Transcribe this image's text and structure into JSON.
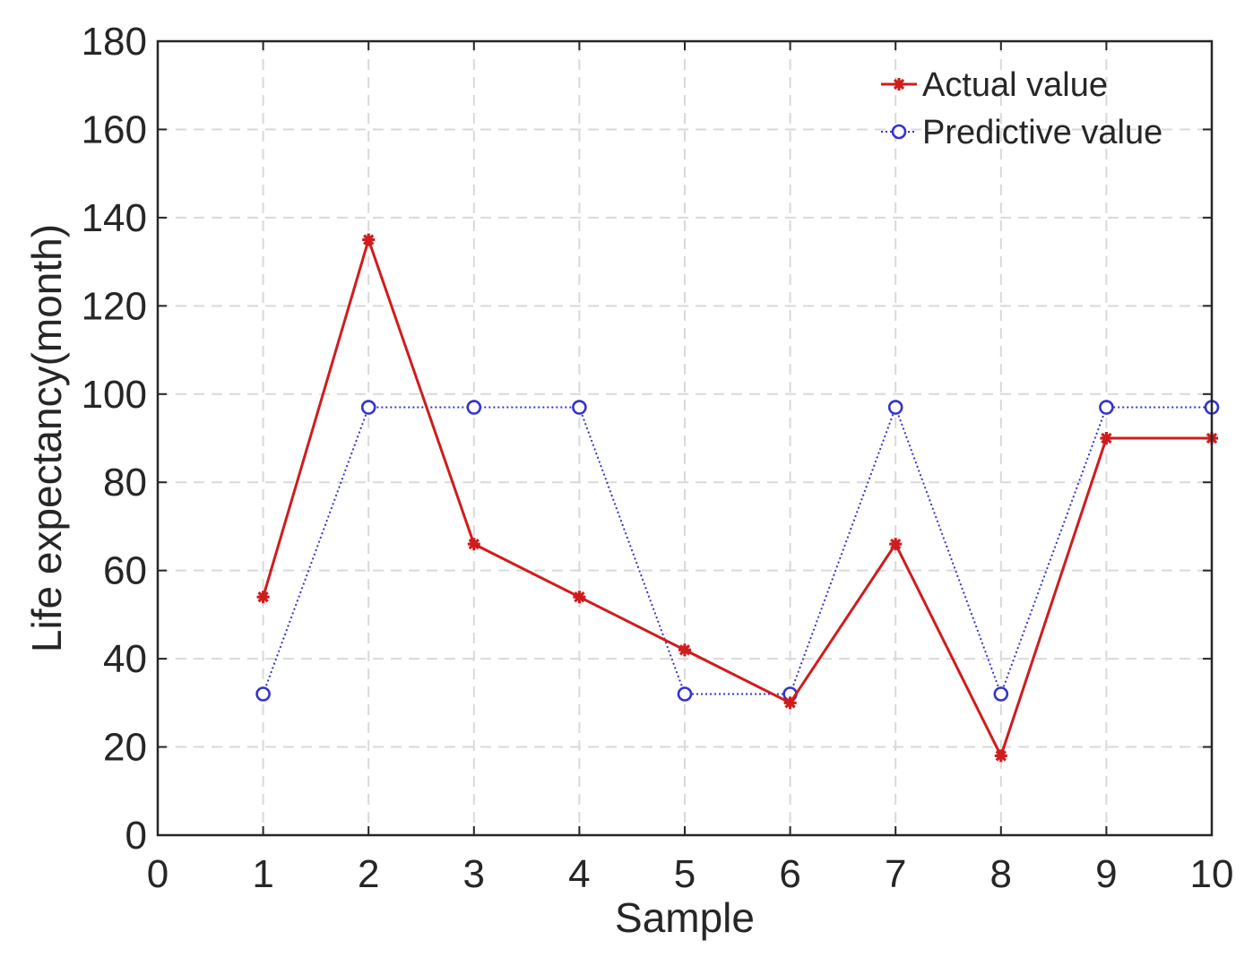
{
  "chart_data": {
    "type": "line",
    "title": "",
    "xlabel": "Sample",
    "ylabel": "Life expectancy(month)",
    "xlim": [
      0,
      10
    ],
    "ylim": [
      0,
      180
    ],
    "xticks": [
      "0",
      "1",
      "2",
      "3",
      "4",
      "5",
      "6",
      "7",
      "8",
      "9",
      "10"
    ],
    "yticks": [
      "0",
      "20",
      "40",
      "60",
      "80",
      "100",
      "120",
      "140",
      "160",
      "180"
    ],
    "grid": true,
    "legend_position": "top-right",
    "x": [
      1,
      2,
      3,
      4,
      5,
      6,
      7,
      8,
      9,
      10
    ],
    "series": [
      {
        "name": "Actual value",
        "color": "#d01c1c",
        "marker": "star",
        "line_style": "solid",
        "values": [
          54,
          135,
          66,
          54,
          42,
          30,
          66,
          18,
          90,
          90
        ]
      },
      {
        "name": "Predictive value",
        "color": "#3333cc",
        "marker": "circle",
        "line_style": "dotted",
        "values": [
          32,
          97,
          97,
          97,
          32,
          32,
          97,
          32,
          97,
          97
        ]
      }
    ]
  }
}
